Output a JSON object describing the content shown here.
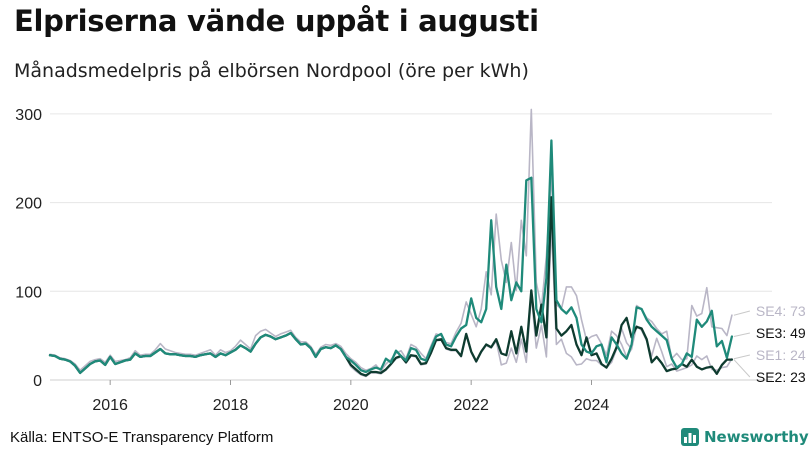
{
  "title": "Elpriserna vände uppåt i augusti",
  "subtitle": "Månadsmedelpris på elbörsen Nordpool (öre per kWh)",
  "source": "Källa: ENTSO-E Transparency Platform",
  "brand": {
    "name": "Newsworthy",
    "icon": "bar-chart-logo-icon",
    "color": "#1f8a7a"
  },
  "chart_data": {
    "type": "line",
    "title": "",
    "xlabel": "",
    "ylabel": "",
    "xlim": [
      2015.0,
      2027.0
    ],
    "ylim": [
      0,
      310
    ],
    "grid": "horizontal",
    "legend": "direct-labels-right",
    "x_ticks": [
      "2016",
      "2018",
      "2020",
      "2022",
      "2024"
    ],
    "y_ticks": [
      "0",
      "100",
      "200",
      "300"
    ],
    "x_start": "2015-01",
    "x_step": "month",
    "series": [
      {
        "name": "SE4",
        "label": "SE4: 73",
        "color": "#b9b6c6",
        "values": [
          29,
          28,
          25,
          24,
          22,
          18,
          11,
          16,
          21,
          23,
          24,
          20,
          28,
          21,
          22,
          23,
          25,
          33,
          28,
          29,
          29,
          34,
          41,
          35,
          33,
          31,
          30,
          29,
          29,
          28,
          30,
          32,
          34,
          28,
          34,
          31,
          33,
          38,
          45,
          40,
          35,
          50,
          55,
          57,
          53,
          49,
          52,
          54,
          56,
          48,
          43,
          43,
          38,
          29,
          37,
          40,
          39,
          41,
          38,
          30,
          24,
          20,
          14,
          11,
          13,
          17,
          10,
          18,
          23,
          30,
          33,
          24,
          40,
          37,
          30,
          24,
          39,
          52,
          50,
          42,
          41,
          54,
          64,
          88,
          74,
          60,
          80,
          122,
          96,
          187,
          135,
          110,
          155,
          101,
          180,
          140,
          305,
          110,
          81,
          140,
          232,
          85,
          80,
          105,
          105,
          95,
          68,
          45,
          49,
          51,
          41,
          28,
          55,
          50,
          40,
          26,
          35,
          84,
          80,
          70,
          66,
          58,
          52,
          55,
          24,
          30,
          23,
          24,
          84,
          72,
          75,
          104,
          60,
          59,
          58,
          50,
          73
        ]
      },
      {
        "name": "SE1",
        "label": "SE1: 24",
        "color": "#b9b6c6",
        "values": [
          28,
          27,
          24,
          23,
          21,
          16,
          8,
          13,
          18,
          21,
          22,
          17,
          26,
          18,
          20,
          22,
          23,
          30,
          26,
          27,
          27,
          31,
          35,
          30,
          29,
          29,
          28,
          27,
          27,
          26,
          28,
          29,
          30,
          26,
          30,
          28,
          31,
          34,
          39,
          36,
          32,
          41,
          48,
          51,
          49,
          46,
          48,
          50,
          53,
          46,
          40,
          41,
          36,
          26,
          35,
          37,
          36,
          39,
          35,
          26,
          15,
          10,
          6,
          4,
          8,
          8,
          7,
          11,
          17,
          24,
          26,
          19,
          27,
          26,
          17,
          18,
          30,
          44,
          45,
          35,
          33,
          33,
          26,
          51,
          31,
          20,
          31,
          39,
          36,
          44,
          17,
          19,
          36,
          20,
          46,
          20,
          95,
          36,
          62,
          26,
          174,
          40,
          46,
          30,
          26,
          17,
          18,
          24,
          22,
          22,
          17,
          14,
          20,
          35,
          58,
          42,
          35,
          61,
          56,
          44,
          27,
          47,
          32,
          15,
          18,
          10,
          12,
          14,
          17,
          27,
          23,
          27,
          12,
          11,
          14,
          15,
          24
        ]
      },
      {
        "name": "SE2",
        "label": "SE2: 23",
        "color": "#0e3b2f",
        "values": [
          28,
          27,
          24,
          23,
          21,
          16,
          8,
          13,
          18,
          21,
          22,
          17,
          26,
          18,
          20,
          22,
          23,
          30,
          26,
          27,
          27,
          31,
          35,
          30,
          29,
          29,
          28,
          27,
          27,
          26,
          28,
          29,
          30,
          26,
          30,
          28,
          31,
          34,
          39,
          36,
          32,
          41,
          48,
          51,
          49,
          46,
          48,
          50,
          53,
          46,
          40,
          41,
          36,
          26,
          35,
          37,
          36,
          39,
          35,
          26,
          17,
          12,
          7,
          5,
          9,
          9,
          8,
          12,
          18,
          25,
          27,
          20,
          28,
          27,
          18,
          19,
          31,
          45,
          46,
          36,
          34,
          34,
          27,
          52,
          32,
          21,
          32,
          40,
          37,
          46,
          30,
          28,
          55,
          30,
          60,
          32,
          101,
          50,
          85,
          48,
          206,
          58,
          50,
          55,
          62,
          40,
          28,
          48,
          28,
          30,
          18,
          14,
          24,
          37,
          62,
          70,
          48,
          60,
          58,
          46,
          20,
          26,
          19,
          10,
          12,
          13,
          18,
          15,
          23,
          15,
          12,
          14,
          15,
          7,
          17,
          23,
          23
        ]
      },
      {
        "name": "SE3",
        "label": "SE3: 49",
        "color": "#1f8a7a",
        "values": [
          28,
          27,
          24,
          23,
          21,
          16,
          8,
          13,
          18,
          21,
          22,
          17,
          26,
          18,
          20,
          22,
          23,
          30,
          26,
          27,
          27,
          31,
          35,
          30,
          29,
          29,
          28,
          27,
          27,
          26,
          28,
          29,
          30,
          26,
          30,
          28,
          31,
          34,
          39,
          36,
          32,
          41,
          48,
          51,
          49,
          46,
          48,
          50,
          53,
          46,
          40,
          41,
          36,
          26,
          35,
          37,
          36,
          39,
          35,
          26,
          22,
          17,
          11,
          9,
          12,
          14,
          12,
          24,
          20,
          33,
          27,
          22,
          36,
          34,
          24,
          22,
          36,
          49,
          52,
          40,
          38,
          49,
          58,
          62,
          92,
          70,
          65,
          80,
          180,
          105,
          80,
          130,
          90,
          110,
          100,
          225,
          228,
          80,
          65,
          115,
          270,
          90,
          80,
          75,
          82,
          70,
          40,
          32,
          30,
          38,
          40,
          20,
          48,
          40,
          30,
          24,
          40,
          82,
          80,
          68,
          60,
          55,
          50,
          45,
          24,
          14,
          18,
          30,
          26,
          68,
          60,
          66,
          78,
          38,
          44,
          25,
          49
        ]
      }
    ]
  }
}
